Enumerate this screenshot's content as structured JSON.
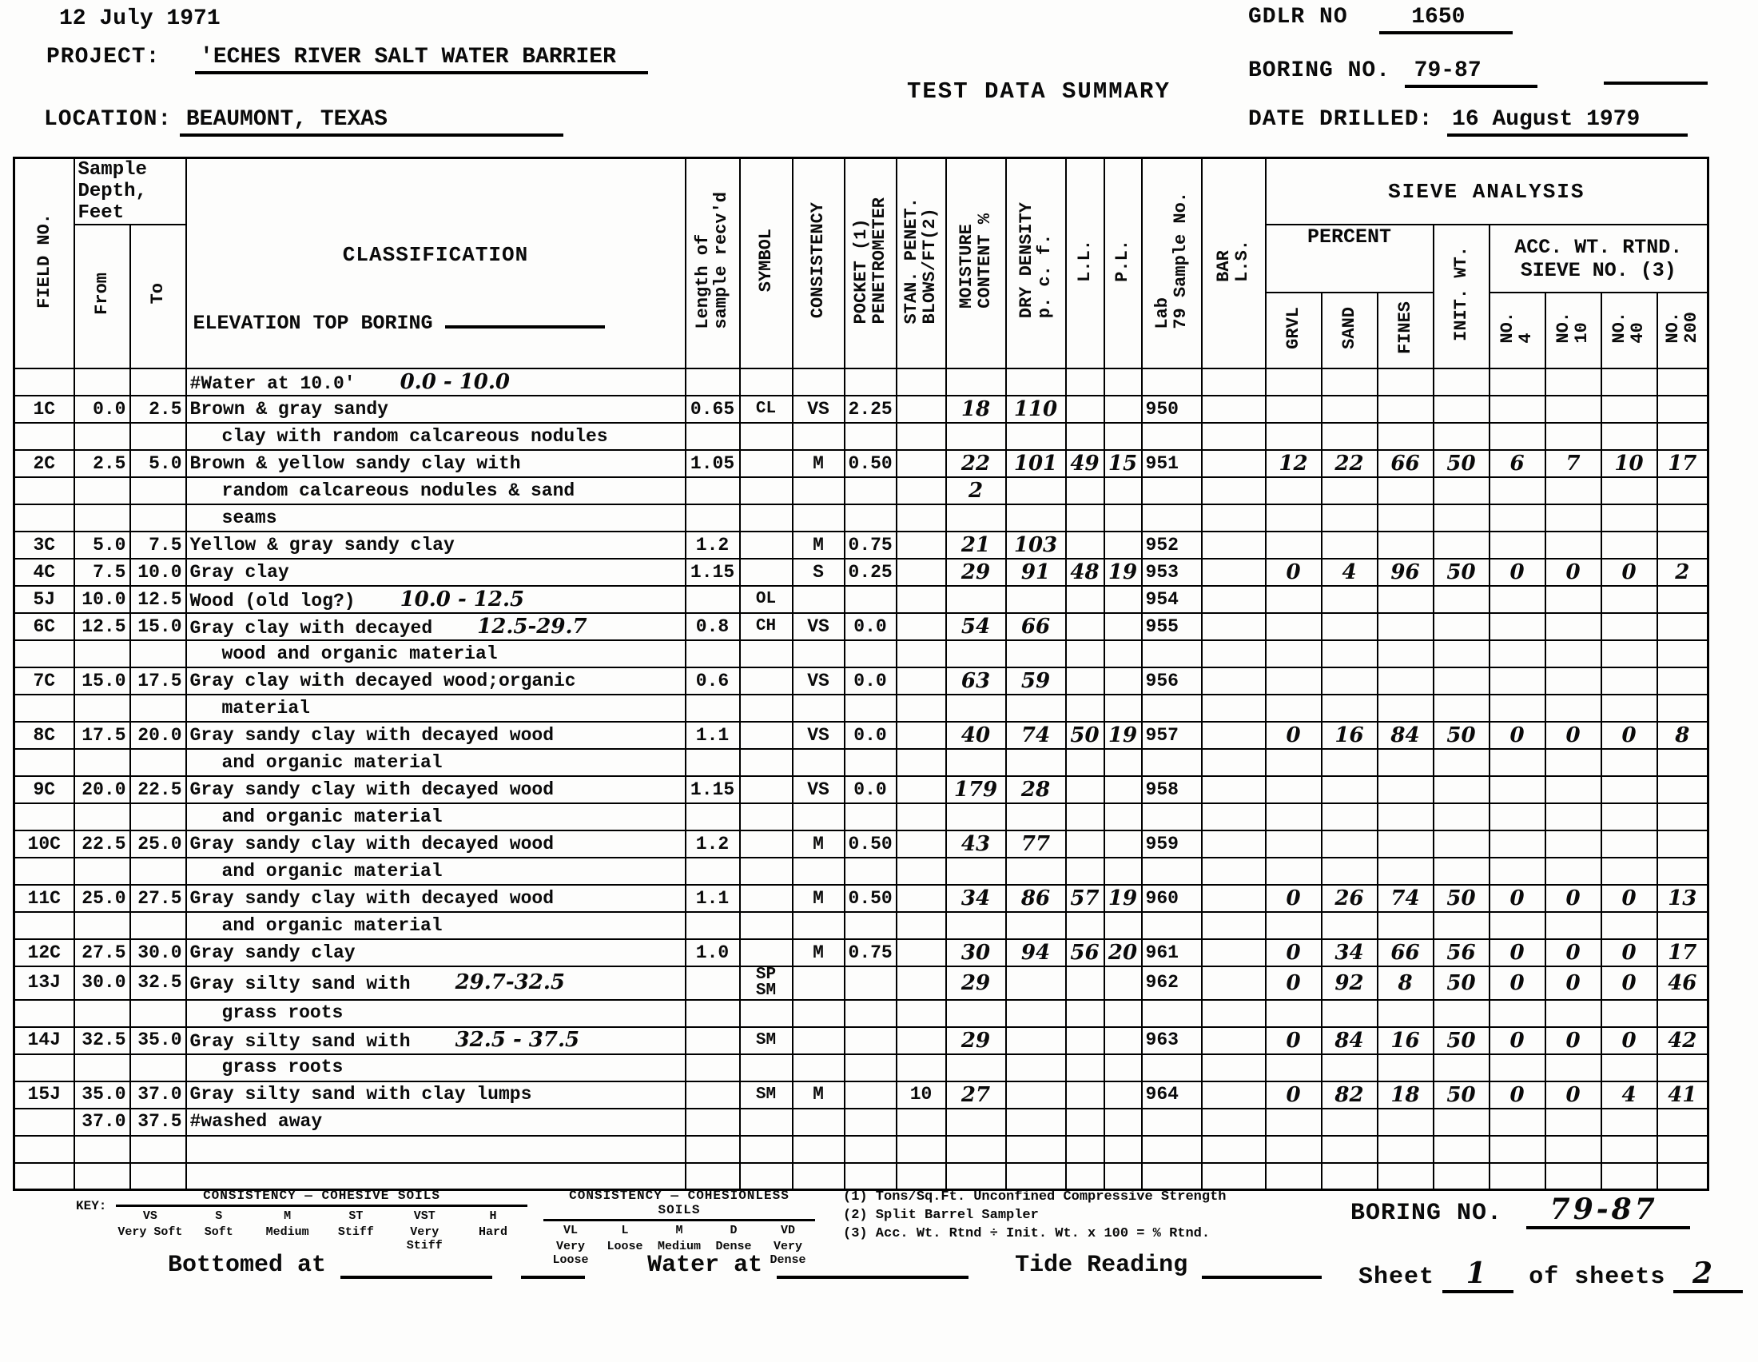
{
  "header": {
    "date": "12 July 1971",
    "project_label": "PROJECT:",
    "project_value": "'ECHES RIVER SALT WATER BARRIER",
    "location_label": "LOCATION:",
    "location_value": "BEAUMONT, TEXAS",
    "title": "TEST DATA SUMMARY",
    "gdlr_label": "GDLR NO",
    "gdlr_value": "1650",
    "boring_label": "BORING NO.",
    "boring_value": "79-87",
    "date_drilled_label": "DATE DRILLED:",
    "date_drilled_value": "16 August 1979"
  },
  "table": {
    "headers": {
      "field": "FIELD NO.",
      "sample_depth": "Sample\nDepth,\nFeet",
      "from": "From",
      "to": "To",
      "classification": "CLASSIFICATION",
      "elevation": "ELEVATION TOP BORING",
      "len": "Length of\nsample recv'd",
      "sym": "SYMBOL",
      "con": "CONSISTENCY",
      "pp": "POCKET (1)\nPENETROMETER",
      "sp": "STAN. PENET.\nBLOWS/FT(2)",
      "mc": "MOISTURE\nCONTENT %",
      "dd": "DRY DENSITY\np. c. f.",
      "ll": "L.L.",
      "pl": "P.L.",
      "lab": "Lab\n79 Sample No.",
      "bar": "BAR\nL.S.",
      "sieve": "SIEVE ANALYSIS",
      "percent": "PERCENT",
      "init": "INIT. WT.",
      "acc": "ACC. WT. RTND.\nSIEVE NO. (3)",
      "grvl": "GRVL",
      "sand": "SAND",
      "fines": "FINES",
      "n4": "NO.\n4",
      "n10": "NO.\n10",
      "n40": "NO.\n40",
      "n200": "NO.\n200"
    },
    "rows": [
      {
        "cls": "#Water at 10.0'",
        "cls_hw": "0.0 - 10.0"
      },
      {
        "field": "1C",
        "from": "0.0",
        "to": "2.5",
        "cls": "Brown & gray sandy",
        "len": "0.65",
        "sym": "CL",
        "con": "VS",
        "pp": "2.25",
        "mc": "18",
        "dd": "110",
        "lab": "950"
      },
      {
        "indent": true,
        "cls": "clay with random calcareous nodules"
      },
      {
        "field": "2C",
        "from": "2.5",
        "to": "5.0",
        "cls": "Brown & yellow sandy clay with",
        "len": "1.05",
        "con": "M",
        "pp": "0.50",
        "mc": "22",
        "dd": "101",
        "ll": "49",
        "pl": "15",
        "lab": "951",
        "grvl": "12",
        "sand": "22",
        "fines": "66",
        "init": "50",
        "n4": "6",
        "n10": "7",
        "n40": "10",
        "n200": "17"
      },
      {
        "indent": true,
        "cls": "random calcareous nodules & sand",
        "mc": "2"
      },
      {
        "indent": true,
        "cls": "seams"
      },
      {
        "field": "3C",
        "from": "5.0",
        "to": "7.5",
        "cls": "Yellow & gray sandy clay",
        "len": "1.2",
        "con": "M",
        "pp": "0.75",
        "mc": "21",
        "dd": "103",
        "lab": "952"
      },
      {
        "field": "4C",
        "from": "7.5",
        "to": "10.0",
        "cls": "Gray clay",
        "len": "1.15",
        "con": "S",
        "pp": "0.25",
        "mc": "29",
        "dd": "91",
        "ll": "48",
        "pl": "19",
        "lab": "953",
        "grvl": "0",
        "sand": "4",
        "fines": "96",
        "init": "50",
        "n4": "0",
        "n10": "0",
        "n40": "0",
        "n200": "2"
      },
      {
        "field": "5J",
        "from": "10.0",
        "to": "12.5",
        "cls": "Wood (old log?)",
        "cls_hw": "10.0 - 12.5",
        "sym": "OL",
        "lab": "954"
      },
      {
        "field": "6C",
        "from": "12.5",
        "to": "15.0",
        "cls": "Gray clay with decayed",
        "cls_hw": "12.5-29.7",
        "len": "0.8",
        "sym": "CH",
        "con": "VS",
        "pp": "0.0",
        "mc": "54",
        "dd": "66",
        "lab": "955"
      },
      {
        "indent": true,
        "cls": "wood and organic material"
      },
      {
        "field": "7C",
        "from": "15.0",
        "to": "17.5",
        "cls": "Gray clay with decayed wood;organic",
        "len": "0.6",
        "con": "VS",
        "pp": "0.0",
        "mc": "63",
        "dd": "59",
        "lab": "956"
      },
      {
        "indent": true,
        "cls": "material"
      },
      {
        "field": "8C",
        "from": "17.5",
        "to": "20.0",
        "cls": "Gray sandy clay with decayed wood",
        "len": "1.1",
        "con": "VS",
        "pp": "0.0",
        "mc": "40",
        "dd": "74",
        "ll": "50",
        "pl": "19",
        "lab": "957",
        "grvl": "0",
        "sand": "16",
        "fines": "84",
        "init": "50",
        "n4": "0",
        "n10": "0",
        "n40": "0",
        "n200": "8"
      },
      {
        "indent": true,
        "cls": "and organic material"
      },
      {
        "field": "9C",
        "from": "20.0",
        "to": "22.5",
        "cls": "Gray sandy clay with decayed wood",
        "len": "1.15",
        "con": "VS",
        "pp": "0.0",
        "mc": "179",
        "dd": "28",
        "lab": "958"
      },
      {
        "indent": true,
        "cls": "and organic material"
      },
      {
        "field": "10C",
        "from": "22.5",
        "to": "25.0",
        "cls": "Gray sandy clay with decayed wood",
        "len": "1.2",
        "con": "M",
        "pp": "0.50",
        "mc": "43",
        "dd": "77",
        "lab": "959"
      },
      {
        "indent": true,
        "cls": "and organic material"
      },
      {
        "field": "11C",
        "from": "25.0",
        "to": "27.5",
        "cls": "Gray sandy clay with decayed wood",
        "len": "1.1",
        "con": "M",
        "pp": "0.50",
        "mc": "34",
        "dd": "86",
        "ll": "57",
        "pl": "19",
        "lab": "960",
        "grvl": "0",
        "sand": "26",
        "fines": "74",
        "init": "50",
        "n4": "0",
        "n10": "0",
        "n40": "0",
        "n200": "13"
      },
      {
        "indent": true,
        "cls": "and organic material"
      },
      {
        "field": "12C",
        "from": "27.5",
        "to": "30.0",
        "cls": "Gray sandy clay",
        "len": "1.0",
        "con": "M",
        "pp": "0.75",
        "mc": "30",
        "dd": "94",
        "ll": "56",
        "pl": "20",
        "lab": "961",
        "grvl": "0",
        "sand": "34",
        "fines": "66",
        "init": "56",
        "n4": "0",
        "n10": "0",
        "n40": "0",
        "n200": "17"
      },
      {
        "field": "13J",
        "from": "30.0",
        "to": "32.5",
        "cls": "Gray silty sand with",
        "cls_hw": "29.7-32.5",
        "sym": "SP\nSM",
        "mc": "29",
        "lab": "962",
        "grvl": "0",
        "sand": "92",
        "fines": "8",
        "init": "50",
        "n4": "0",
        "n10": "0",
        "n40": "0",
        "n200": "46"
      },
      {
        "indent": true,
        "cls": "grass roots"
      },
      {
        "field": "14J",
        "from": "32.5",
        "to": "35.0",
        "cls": "Gray silty sand with",
        "cls_hw": "32.5 - 37.5",
        "sym": "SM",
        "mc": "29",
        "lab": "963",
        "grvl": "0",
        "sand": "84",
        "fines": "16",
        "init": "50",
        "n4": "0",
        "n10": "0",
        "n40": "0",
        "n200": "42"
      },
      {
        "indent": true,
        "cls": "grass roots"
      },
      {
        "field": "15J",
        "from": "35.0",
        "to": "37.0",
        "cls": "Gray silty sand with clay lumps",
        "sym": "SM",
        "con": "M",
        "sp": "10",
        "mc": "27",
        "lab": "964",
        "grvl": "0",
        "sand": "82",
        "fines": "18",
        "init": "50",
        "n4": "0",
        "n10": "0",
        "n40": "4",
        "n200": "41"
      },
      {
        "from": "37.0",
        "to": "37.5",
        "cls": "#washed away"
      },
      {},
      {}
    ]
  },
  "footer": {
    "key_label": "KEY:",
    "cohesive": {
      "title": "CONSISTENCY — COHESIVE SOILS",
      "codes": [
        "VS",
        "S",
        "M",
        "ST",
        "VST",
        "H"
      ],
      "names": [
        "Very Soft",
        "Soft",
        "Medium",
        "Stiff",
        "Very Stiff",
        "Hard"
      ]
    },
    "cohesionless": {
      "title": "CONSISTENCY — COHESIONLESS SOILS",
      "codes": [
        "VL",
        "L",
        "M",
        "D",
        "VD"
      ],
      "names": [
        "Very Loose",
        "Loose",
        "Medium",
        "Dense",
        "Very Dense"
      ]
    },
    "notes": [
      "(1) Tons/Sq.Ft. Unconfined Compressive Strength",
      "(2) Split Barrel Sampler",
      "(3) Acc. Wt. Rtnd ÷ Init. Wt. x 100 = % Rtnd."
    ],
    "bottomed_label": "Bottomed at",
    "water_label": "Water at",
    "tide_label": "Tide Reading",
    "boring_label": "BORING NO.",
    "boring_value": "79-87",
    "sheet_label": "Sheet",
    "sheet_value": "1",
    "of_label": "of sheets",
    "sheets_value": "2"
  }
}
